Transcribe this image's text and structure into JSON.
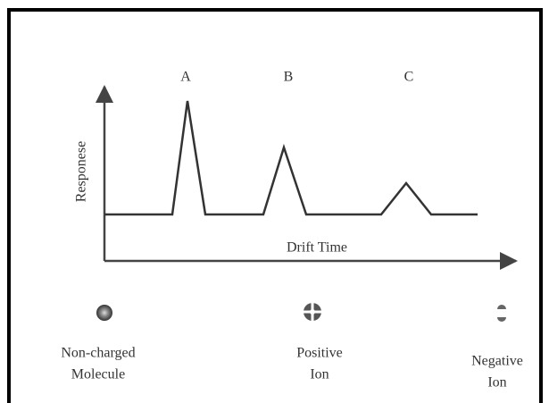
{
  "diagram": {
    "peaks": [
      {
        "label": "A"
      },
      {
        "label": "B"
      },
      {
        "label": "C"
      }
    ],
    "y_axis_label": "Responese",
    "x_axis_label": "Drift Time",
    "species": [
      {
        "lines": [
          "Non-charged",
          "Molecule"
        ]
      },
      {
        "lines": [
          "Positive",
          "Ion"
        ]
      },
      {
        "lines": [
          "Negative",
          "Ion"
        ]
      }
    ]
  }
}
